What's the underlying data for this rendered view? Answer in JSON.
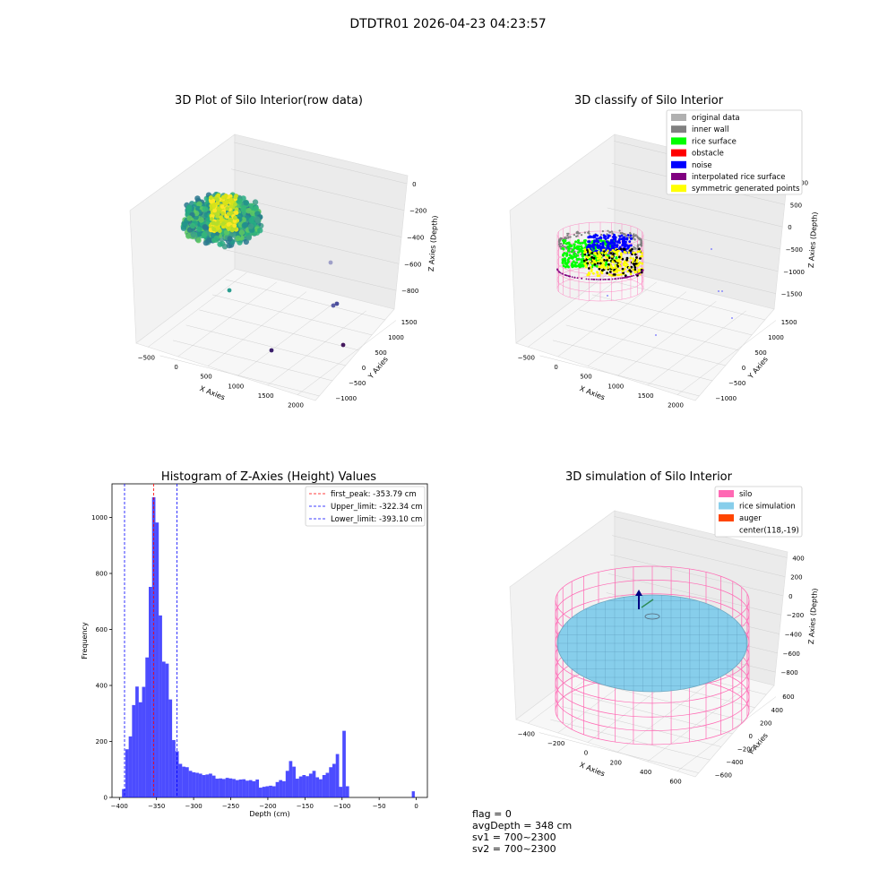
{
  "suptitle": "DTDTR01 2026-04-23 04:23:57",
  "panels": {
    "raw": {
      "title": "3D Plot of Silo Interior(row data)",
      "xlabel": "X Axies",
      "ylabel": "Y Axies",
      "zlabel": "Z Axies (Depth)",
      "xticks": [
        "−500",
        "0",
        "500",
        "1000",
        "1500",
        "2000"
      ],
      "yticks": [
        "−1000",
        "−500",
        "0",
        "500",
        "1000",
        "1500"
      ],
      "zticks": [
        "0",
        "−200",
        "−400",
        "−600",
        "−800"
      ]
    },
    "classify": {
      "title": "3D classify of Silo Interior",
      "xlabel": "X Axies",
      "ylabel": "Y Axies",
      "zlabel": "Z Axies (Depth)",
      "xticks": [
        "−500",
        "0",
        "500",
        "1000",
        "1500",
        "2000"
      ],
      "yticks": [
        "−1000",
        "−500",
        "0",
        "500",
        "1000",
        "1500"
      ],
      "zticks": [
        "1000",
        "500",
        "0",
        "−500",
        "−1000",
        "−1500"
      ],
      "legend": [
        {
          "label": "original data",
          "color": "#b0b0b0"
        },
        {
          "label": "inner wall",
          "color": "#808080"
        },
        {
          "label": "rice surface",
          "color": "#00ff00"
        },
        {
          "label": "obstacle",
          "color": "#ff0000"
        },
        {
          "label": "noise",
          "color": "#0000ff"
        },
        {
          "label": "interpolated rice surface",
          "color": "#800080"
        },
        {
          "label": "symmetric generated points",
          "color": "#ffff00"
        }
      ]
    },
    "simulation": {
      "title": "3D simulation of Silo Interior",
      "xlabel": "X Axies",
      "ylabel": "Y Axies",
      "zlabel": "Z Axies (Depth)",
      "xticks": [
        "−400",
        "−200",
        "0",
        "200",
        "400",
        "600"
      ],
      "yticks": [
        "−600",
        "−400",
        "−200",
        "0",
        "200",
        "400",
        "600"
      ],
      "zticks": [
        "400",
        "200",
        "0",
        "−200",
        "−400",
        "−600",
        "−800"
      ],
      "legend": [
        {
          "label": "silo",
          "color": "#ff69b4"
        },
        {
          "label": "rice simulation",
          "color": "#87ceeb"
        },
        {
          "label": "auger",
          "color": "#ff4500"
        },
        {
          "label": "center(118,-19)",
          "color": ""
        }
      ]
    }
  },
  "status": {
    "flag": "flag = 0",
    "avg_depth": "avgDepth = 348 cm",
    "sv1": "sv1 = 700~2300",
    "sv2": "sv2 = 700~2300"
  },
  "chart_data": [
    {
      "type": "scatter",
      "title": "3D Plot of Silo Interior(row data)",
      "xlabel": "X Axies",
      "ylabel": "Y Axies",
      "zlabel": "Z Axies (Depth)",
      "xlim": [
        -600,
        2200
      ],
      "ylim": [
        -1100,
        1600
      ],
      "zlim": [
        -900,
        50
      ],
      "colormap": "viridis"
    },
    {
      "type": "scatter",
      "title": "3D classify of Silo Interior",
      "xlabel": "X Axies",
      "ylabel": "Y Axies",
      "zlabel": "Z Axies (Depth)",
      "xlim": [
        -600,
        2200
      ],
      "ylim": [
        -1100,
        1600
      ],
      "zlim": [
        -1700,
        1100
      ],
      "legend_position": "upper right"
    },
    {
      "type": "histogram",
      "title": "Histogram of Z-Axies (Height) Values",
      "xlabel": "Depth (cm)",
      "ylabel": "Frequency",
      "xlim": [
        -410,
        15
      ],
      "ylim": [
        0,
        1120
      ],
      "xticks": [
        -400,
        -350,
        -300,
        -250,
        -200,
        -150,
        -100,
        -50,
        0
      ],
      "yticks": [
        0,
        200,
        400,
        600,
        800,
        1000
      ],
      "bar_color": "#0000ff",
      "bins": [
        {
          "x0": -396.5,
          "x1": -392.0,
          "count": 30
        },
        {
          "x0": -392.0,
          "x1": -387.5,
          "count": 172
        },
        {
          "x0": -387.5,
          "x1": -383.0,
          "count": 218
        },
        {
          "x0": -383.0,
          "x1": -378.5,
          "count": 330
        },
        {
          "x0": -378.5,
          "x1": -374.0,
          "count": 396
        },
        {
          "x0": -374.0,
          "x1": -369.5,
          "count": 340
        },
        {
          "x0": -369.5,
          "x1": -365.0,
          "count": 395
        },
        {
          "x0": -365.0,
          "x1": -360.5,
          "count": 500
        },
        {
          "x0": -360.5,
          "x1": -356.0,
          "count": 752
        },
        {
          "x0": -356.0,
          "x1": -351.5,
          "count": 1072
        },
        {
          "x0": -351.5,
          "x1": -347.0,
          "count": 982
        },
        {
          "x0": -347.0,
          "x1": -342.5,
          "count": 650
        },
        {
          "x0": -342.5,
          "x1": -338.0,
          "count": 485
        },
        {
          "x0": -338.0,
          "x1": -333.5,
          "count": 478
        },
        {
          "x0": -333.5,
          "x1": -329.0,
          "count": 350
        },
        {
          "x0": -329.0,
          "x1": -324.5,
          "count": 205
        },
        {
          "x0": -324.5,
          "x1": -320.0,
          "count": 165
        },
        {
          "x0": -320.0,
          "x1": -315.5,
          "count": 120
        },
        {
          "x0": -315.5,
          "x1": -311.0,
          "count": 110
        },
        {
          "x0": -311.0,
          "x1": -306.5,
          "count": 108
        },
        {
          "x0": -306.5,
          "x1": -302.0,
          "count": 95
        },
        {
          "x0": -302.0,
          "x1": -297.5,
          "count": 90
        },
        {
          "x0": -297.5,
          "x1": -293.0,
          "count": 88
        },
        {
          "x0": -293.0,
          "x1": -288.5,
          "count": 85
        },
        {
          "x0": -288.5,
          "x1": -284.0,
          "count": 80
        },
        {
          "x0": -284.0,
          "x1": -279.5,
          "count": 82
        },
        {
          "x0": -279.5,
          "x1": -275.0,
          "count": 85
        },
        {
          "x0": -275.0,
          "x1": -270.5,
          "count": 78
        },
        {
          "x0": -270.5,
          "x1": -266.0,
          "count": 67
        },
        {
          "x0": -266.0,
          "x1": -261.5,
          "count": 68
        },
        {
          "x0": -261.5,
          "x1": -257.0,
          "count": 66
        },
        {
          "x0": -257.0,
          "x1": -252.5,
          "count": 70
        },
        {
          "x0": -252.5,
          "x1": -248.0,
          "count": 68
        },
        {
          "x0": -248.0,
          "x1": -243.5,
          "count": 66
        },
        {
          "x0": -243.5,
          "x1": -239.0,
          "count": 62
        },
        {
          "x0": -239.0,
          "x1": -234.5,
          "count": 64
        },
        {
          "x0": -234.5,
          "x1": -230.0,
          "count": 65
        },
        {
          "x0": -230.0,
          "x1": -225.5,
          "count": 60
        },
        {
          "x0": -225.5,
          "x1": -221.0,
          "count": 62
        },
        {
          "x0": -221.0,
          "x1": -216.5,
          "count": 58
        },
        {
          "x0": -216.5,
          "x1": -212.0,
          "count": 64
        },
        {
          "x0": -212.0,
          "x1": -207.5,
          "count": 35
        },
        {
          "x0": -207.5,
          "x1": -203.0,
          "count": 38
        },
        {
          "x0": -203.0,
          "x1": -198.5,
          "count": 40
        },
        {
          "x0": -198.5,
          "x1": -194.0,
          "count": 42
        },
        {
          "x0": -194.0,
          "x1": -189.5,
          "count": 40
        },
        {
          "x0": -189.5,
          "x1": -185.0,
          "count": 55
        },
        {
          "x0": -185.0,
          "x1": -180.5,
          "count": 62
        },
        {
          "x0": -180.5,
          "x1": -176.0,
          "count": 58
        },
        {
          "x0": -176.0,
          "x1": -171.5,
          "count": 95
        },
        {
          "x0": -171.5,
          "x1": -167.0,
          "count": 130
        },
        {
          "x0": -167.0,
          "x1": -162.5,
          "count": 110
        },
        {
          "x0": -162.5,
          "x1": -158.0,
          "count": 67
        },
        {
          "x0": -158.0,
          "x1": -153.5,
          "count": 75
        },
        {
          "x0": -153.5,
          "x1": -149.0,
          "count": 80
        },
        {
          "x0": -149.0,
          "x1": -144.5,
          "count": 76
        },
        {
          "x0": -144.5,
          "x1": -140.0,
          "count": 85
        },
        {
          "x0": -140.0,
          "x1": -135.5,
          "count": 95
        },
        {
          "x0": -135.5,
          "x1": -131.0,
          "count": 72
        },
        {
          "x0": -131.0,
          "x1": -126.5,
          "count": 65
        },
        {
          "x0": -126.5,
          "x1": -122.0,
          "count": 80
        },
        {
          "x0": -122.0,
          "x1": -117.5,
          "count": 88
        },
        {
          "x0": -117.5,
          "x1": -113.0,
          "count": 108
        },
        {
          "x0": -113.0,
          "x1": -108.5,
          "count": 120
        },
        {
          "x0": -108.5,
          "x1": -104.0,
          "count": 155
        },
        {
          "x0": -104.0,
          "x1": -99.5,
          "count": 38
        },
        {
          "x0": -99.5,
          "x1": -95.0,
          "count": 238
        },
        {
          "x0": -95.0,
          "x1": -90.5,
          "count": 40
        },
        {
          "x0": -90.5,
          "x1": -86.0,
          "count": 0
        },
        {
          "x0": -86.0,
          "x1": -81.5,
          "count": 0
        }
      ],
      "reference_lines": [
        {
          "label": "first_peak: -353.79 cm",
          "x": -353.79,
          "color": "#ff0000"
        },
        {
          "label": "Upper_limit: -322.34 cm",
          "x": -322.34,
          "color": "#0000ff"
        },
        {
          "label": "Lower_limit: -393.10 cm",
          "x": -393.1,
          "color": "#0000ff"
        }
      ]
    },
    {
      "type": "surface",
      "title": "3D simulation of Silo Interior",
      "xlabel": "X Axies",
      "ylabel": "Y Axies",
      "zlabel": "Z Axies (Depth)",
      "xlim": [
        -500,
        700
      ],
      "ylim": [
        -700,
        700
      ],
      "zlim": [
        -900,
        450
      ],
      "legend_position": "upper right"
    }
  ]
}
